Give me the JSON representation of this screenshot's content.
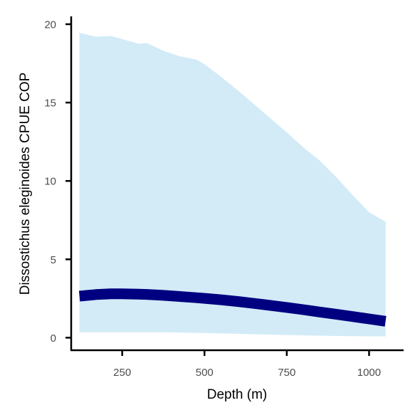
{
  "chart_data": {
    "type": "area",
    "xlabel": "Depth (m)",
    "ylabel": "Dissostichus eleginoides  CPUE COP",
    "xlim": [
      95,
      1105
    ],
    "ylim": [
      -0.8,
      20.5
    ],
    "x_ticks": [
      250,
      500,
      750,
      1000
    ],
    "y_ticks": [
      0,
      5,
      10,
      15,
      20
    ],
    "grid": false,
    "legend": "none",
    "colors": {
      "ribbon": "#d2ebf7",
      "line": "#000080",
      "axis": "#000000",
      "tick_text": "#4d4d4d"
    },
    "series": [
      {
        "x": [
          120,
          170,
          215,
          250,
          300,
          325,
          375,
          425,
          475,
          500,
          550,
          600,
          650,
          700,
          750,
          800,
          850,
          900,
          950,
          1000,
          1050
        ],
        "upper": [
          19.45,
          19.2,
          19.25,
          19.05,
          18.75,
          18.8,
          18.3,
          17.95,
          17.75,
          17.45,
          16.65,
          15.8,
          14.9,
          14.0,
          13.1,
          12.15,
          11.3,
          10.25,
          9.1,
          8.0,
          7.4
        ],
        "lower": [
          0.35,
          0.35,
          0.35,
          0.35,
          0.35,
          0.35,
          0.35,
          0.33,
          0.31,
          0.3,
          0.27,
          0.25,
          0.22,
          0.2,
          0.17,
          0.15,
          0.13,
          0.11,
          0.1,
          0.09,
          0.08
        ],
        "fit": [
          2.65,
          2.75,
          2.8,
          2.8,
          2.78,
          2.76,
          2.7,
          2.63,
          2.55,
          2.51,
          2.42,
          2.31,
          2.19,
          2.06,
          1.93,
          1.79,
          1.64,
          1.5,
          1.35,
          1.2,
          1.05
        ]
      }
    ]
  }
}
